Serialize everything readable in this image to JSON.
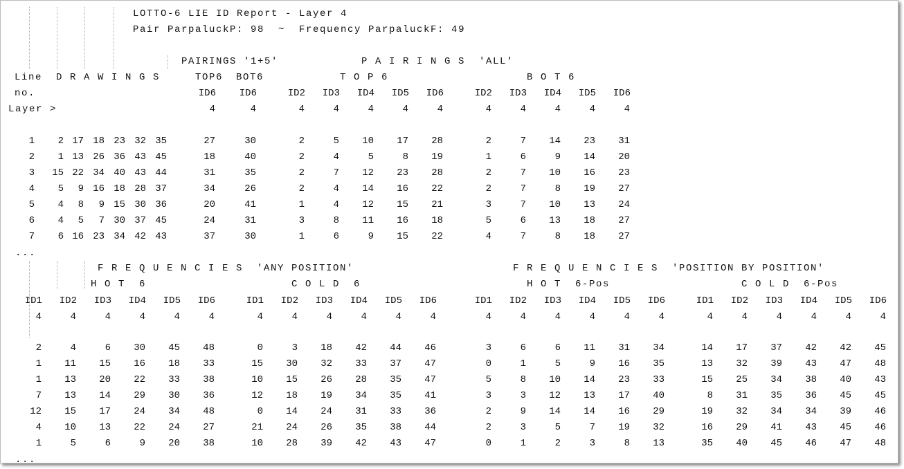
{
  "header": {
    "title": "LOTTO-6 LIE ID Report - Layer 4",
    "subtitle": "Pair ParpaluckP: 98  ~  Frequency ParpaluckF: 49"
  },
  "top_table": {
    "group_pairings_15": "PAIRINGS '1+5'",
    "group_pairings_all": "P A I R I N G S  'ALL'",
    "line_header": "Line",
    "line_header2": "no.",
    "drawings_header": "D R A W I N G S",
    "top6_label": "TOP6",
    "bot6_label": "BOT6",
    "top6_group": "T O P 6",
    "bot6_group": "B O T 6",
    "id_headers": [
      "ID6",
      "ID6",
      "ID2",
      "ID3",
      "ID4",
      "ID5",
      "ID6",
      "ID2",
      "ID3",
      "ID4",
      "ID5",
      "ID6"
    ],
    "layer_label": "Layer >",
    "layer": [
      4,
      4,
      4,
      4,
      4,
      4,
      4,
      4,
      4,
      4,
      4,
      4
    ],
    "rows": [
      [
        1,
        2,
        17,
        18,
        23,
        32,
        35,
        27,
        30,
        2,
        5,
        10,
        17,
        28,
        2,
        7,
        14,
        23,
        31
      ],
      [
        2,
        1,
        13,
        26,
        36,
        43,
        45,
        18,
        40,
        2,
        4,
        5,
        8,
        19,
        1,
        6,
        9,
        14,
        20
      ],
      [
        3,
        15,
        22,
        34,
        40,
        43,
        44,
        31,
        35,
        2,
        7,
        12,
        23,
        28,
        2,
        7,
        10,
        16,
        23
      ],
      [
        4,
        5,
        9,
        16,
        18,
        28,
        37,
        34,
        26,
        2,
        4,
        14,
        16,
        22,
        2,
        7,
        8,
        19,
        27
      ],
      [
        5,
        4,
        8,
        9,
        15,
        30,
        36,
        20,
        41,
        1,
        4,
        12,
        15,
        21,
        3,
        7,
        10,
        13,
        24
      ],
      [
        6,
        4,
        5,
        7,
        30,
        37,
        45,
        24,
        31,
        3,
        8,
        11,
        16,
        18,
        5,
        6,
        13,
        18,
        27
      ],
      [
        7,
        6,
        16,
        23,
        34,
        42,
        43,
        37,
        30,
        1,
        6,
        9,
        15,
        22,
        4,
        7,
        8,
        18,
        27
      ]
    ],
    "ellipsis": "..."
  },
  "bottom_table": {
    "group_any": "F R E Q U E N C I E S  'ANY POSITION'",
    "group_pos": "F R E Q U E N C I E S  'POSITION BY POSITION'",
    "hot6": "H O T  6",
    "cold6": "C O L D  6",
    "hot6pos": "H O T  6-Pos",
    "cold6pos": "C O L D  6-Pos",
    "id_headers": [
      "ID1",
      "ID2",
      "ID3",
      "ID4",
      "ID5",
      "ID6",
      "ID1",
      "ID2",
      "ID3",
      "ID4",
      "ID5",
      "ID6",
      "ID1",
      "ID2",
      "ID3",
      "ID4",
      "ID5",
      "ID6",
      "ID1",
      "ID2",
      "ID3",
      "ID4",
      "ID5",
      "ID6"
    ],
    "layer": [
      4,
      4,
      4,
      4,
      4,
      4,
      4,
      4,
      4,
      4,
      4,
      4,
      4,
      4,
      4,
      4,
      4,
      4,
      4,
      4,
      4,
      4,
      4,
      4
    ],
    "rows": [
      [
        2,
        4,
        6,
        30,
        45,
        48,
        0,
        3,
        18,
        42,
        44,
        46,
        3,
        6,
        6,
        11,
        31,
        34,
        14,
        17,
        37,
        42,
        42,
        45
      ],
      [
        1,
        11,
        15,
        16,
        18,
        33,
        15,
        30,
        32,
        33,
        37,
        47,
        0,
        1,
        5,
        9,
        16,
        35,
        13,
        32,
        39,
        43,
        47,
        48
      ],
      [
        1,
        13,
        20,
        22,
        33,
        38,
        10,
        15,
        26,
        28,
        35,
        47,
        5,
        8,
        10,
        14,
        23,
        33,
        15,
        25,
        34,
        38,
        40,
        43
      ],
      [
        7,
        13,
        14,
        29,
        30,
        36,
        12,
        18,
        19,
        34,
        35,
        41,
        3,
        3,
        12,
        13,
        17,
        40,
        8,
        31,
        35,
        36,
        45,
        45
      ],
      [
        12,
        15,
        17,
        24,
        34,
        48,
        0,
        14,
        24,
        31,
        33,
        36,
        2,
        9,
        14,
        14,
        16,
        29,
        19,
        32,
        34,
        34,
        39,
        46
      ],
      [
        4,
        10,
        13,
        22,
        24,
        27,
        21,
        24,
        26,
        35,
        38,
        44,
        2,
        3,
        5,
        7,
        19,
        32,
        16,
        29,
        41,
        43,
        45,
        46
      ],
      [
        1,
        5,
        6,
        9,
        20,
        38,
        10,
        28,
        39,
        42,
        43,
        47,
        0,
        1,
        2,
        3,
        8,
        13,
        35,
        40,
        45,
        46,
        47,
        48
      ]
    ],
    "ellipsis": "..."
  }
}
